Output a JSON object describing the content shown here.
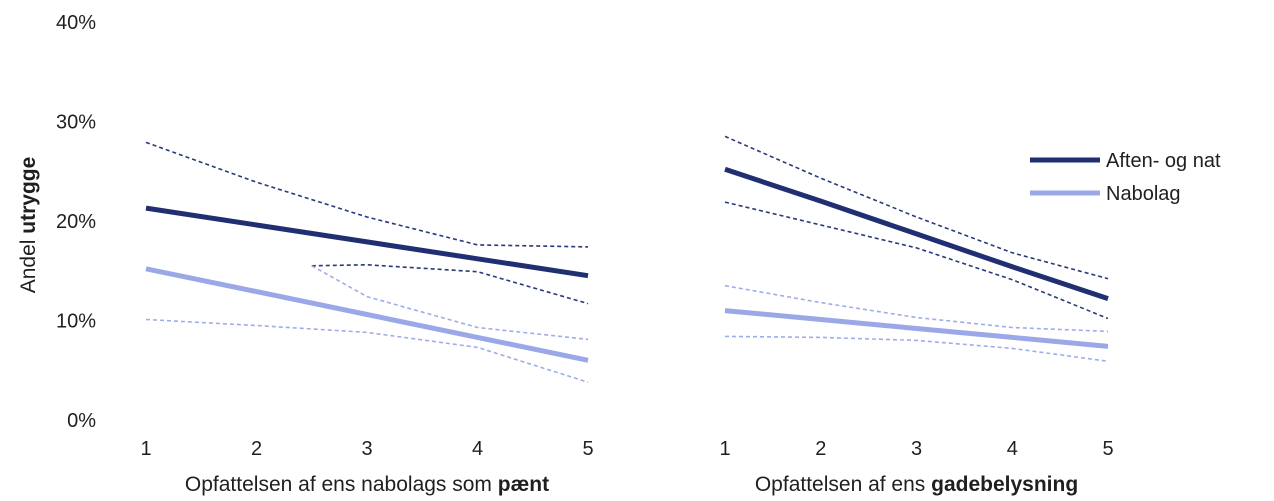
{
  "chart_data": {
    "type": "line",
    "ylabel_prefix": "Andel",
    "ylabel_bold": "utrygge",
    "y_ticks": [
      "0%",
      "10%",
      "20%",
      "30%",
      "40%"
    ],
    "ylim": [
      0,
      40
    ],
    "legend_position": "right",
    "legend": [
      {
        "label": "Aften- og nat",
        "color": "#1f2f72"
      },
      {
        "label": "Nabolag",
        "color": "#9ba8e8"
      }
    ],
    "panels": [
      {
        "xlabel_prefix": "Opfattelsen af ens nabolags som",
        "xlabel_bold": "pænt",
        "x": [
          1,
          2,
          3,
          4,
          5
        ],
        "x_ticks": [
          "1",
          "2",
          "3",
          "4",
          "5"
        ],
        "series": [
          {
            "legend_index": 0,
            "color": "#1f2f72",
            "values": [
              21.3,
              19.6,
              17.9,
              16.2,
              14.5
            ],
            "ci_upper": {
              "x": [
                1,
                2,
                3,
                4,
                5
              ],
              "y": [
                27.9,
                23.9,
                20.4,
                17.6,
                17.4
              ]
            },
            "ci_lower": {
              "x": [
                2.5,
                3,
                4,
                5
              ],
              "y": [
                15.5,
                15.6,
                14.9,
                11.7
              ]
            }
          },
          {
            "legend_index": 1,
            "color": "#9ba8e8",
            "values": [
              15.2,
              12.9,
              10.6,
              8.3,
              6.0
            ],
            "ci_upper": {
              "x": [
                1,
                2,
                3,
                4,
                5
              ],
              "y": [
                10.1,
                9.5,
                8.8,
                7.3,
                3.8
              ]
            },
            "ci_lower": {
              "x": [
                2.5,
                3,
                4,
                5
              ],
              "y": [
                15.5,
                12.4,
                9.3,
                8.1
              ]
            }
          }
        ]
      },
      {
        "xlabel_prefix": "Opfattelsen af ens",
        "xlabel_bold": "gadebelysning",
        "x": [
          1,
          2,
          3,
          4,
          5
        ],
        "x_ticks": [
          "1",
          "2",
          "3",
          "4",
          "5"
        ],
        "series": [
          {
            "legend_index": 0,
            "color": "#1f2f72",
            "values": [
              25.2,
              22.0,
              18.7,
              15.4,
              12.2
            ],
            "ci_upper": {
              "x": [
                1,
                2,
                3,
                4,
                5
              ],
              "y": [
                28.5,
                24.3,
                20.4,
                16.8,
                14.2
              ]
            },
            "ci_lower": {
              "x": [
                1,
                2,
                3,
                4,
                5
              ],
              "y": [
                21.9,
                19.6,
                17.3,
                14.1,
                10.2
              ]
            }
          },
          {
            "legend_index": 1,
            "color": "#9ba8e8",
            "values": [
              11.0,
              10.1,
              9.2,
              8.3,
              7.4
            ],
            "ci_upper": {
              "x": [
                1,
                2,
                3,
                4,
                5
              ],
              "y": [
                13.5,
                11.8,
                10.3,
                9.3,
                8.9
              ]
            },
            "ci_lower": {
              "x": [
                1,
                2,
                3,
                4,
                5
              ],
              "y": [
                8.4,
                8.3,
                8.0,
                7.2,
                5.9
              ]
            }
          }
        ]
      }
    ]
  }
}
